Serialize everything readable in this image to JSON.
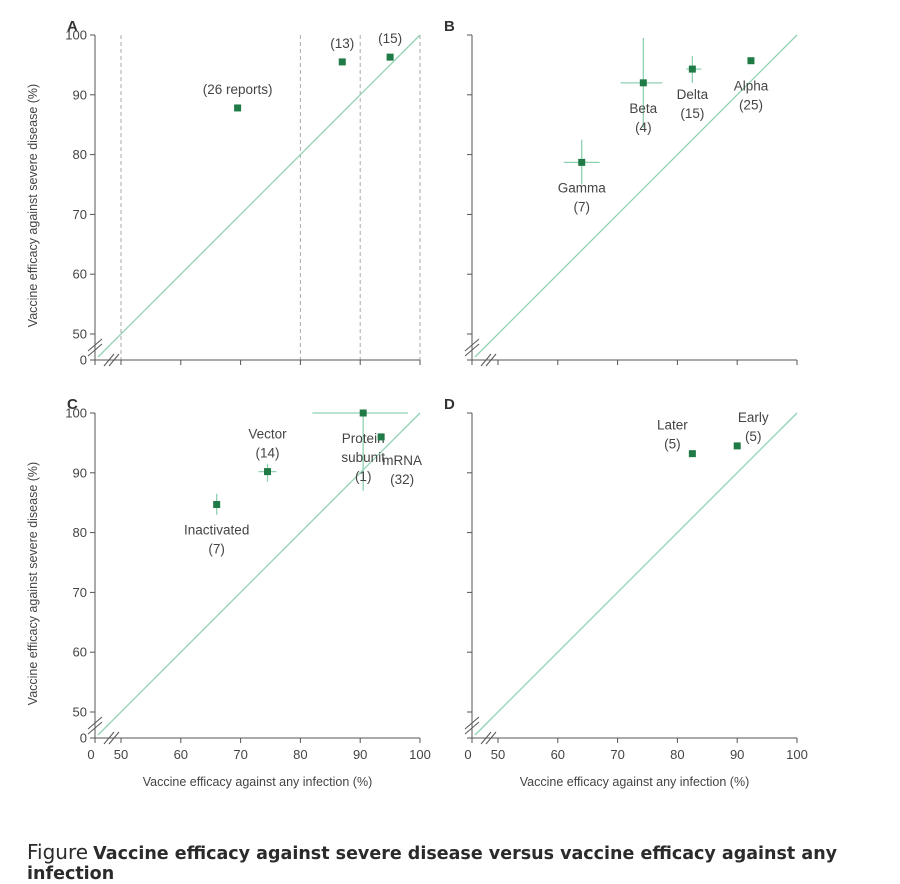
{
  "figure": {
    "caption_lead": "Figure",
    "caption_text": "Vaccine efficacy against severe disease versus vaccine efficacy against any infection"
  },
  "colors": {
    "marker": "#1f7a45",
    "diagonal": "#8fd2b2",
    "axis": "#555555",
    "dashed": "#aaaaaa",
    "errorbar": "#8fd2b2"
  },
  "chart_data": [
    {
      "panel": "A",
      "type": "scatter",
      "xlabel": "",
      "ylabel": "Vaccine efficacy against severe disease (%)",
      "xlim": [
        50,
        100
      ],
      "ylim": [
        50,
        100
      ],
      "axis_break": true,
      "x_ticks": [],
      "y_ticks": [
        "0",
        "50",
        "60",
        "70",
        "80",
        "90",
        "100"
      ],
      "dashed_vlines": [
        50,
        80,
        90,
        100
      ],
      "points": [
        {
          "x": 69.5,
          "y": 87.8,
          "label": "(26 reports)",
          "label_pos": "above"
        },
        {
          "x": 87,
          "y": 95.5,
          "label": "(13)",
          "label_pos": "above"
        },
        {
          "x": 95,
          "y": 96.3,
          "label": "(15)",
          "label_pos": "above"
        }
      ]
    },
    {
      "panel": "B",
      "type": "scatter",
      "xlabel": "",
      "ylabel": "",
      "xlim": [
        50,
        100
      ],
      "ylim": [
        50,
        100
      ],
      "axis_break": true,
      "x_ticks": [],
      "y_ticks": [],
      "dashed_vlines": [],
      "points": [
        {
          "x": 64,
          "y": 78.7,
          "xerr": [
            61,
            67
          ],
          "yerr": [
            75,
            82.5
          ],
          "label": "Gamma",
          "label2": "(7)",
          "label_pos": "below"
        },
        {
          "x": 74.3,
          "y": 92,
          "xerr": [
            70.5,
            77.5
          ],
          "yerr": [
            84.5,
            99.5
          ],
          "label": "Beta",
          "label2": "(4)",
          "label_pos": "below"
        },
        {
          "x": 82.5,
          "y": 94.3,
          "xerr": [
            81.5,
            84
          ],
          "yerr": [
            92,
            96.5
          ],
          "label": "Delta",
          "label2": "(15)",
          "label_pos": "below"
        },
        {
          "x": 92.3,
          "y": 95.7,
          "label": "Alpha",
          "label2": "(25)",
          "label_pos": "below"
        }
      ]
    },
    {
      "panel": "C",
      "type": "scatter",
      "xlabel": "Vaccine efficacy against any infection (%)",
      "ylabel": "Vaccine efficacy against severe disease (%)",
      "xlim": [
        50,
        100
      ],
      "ylim": [
        50,
        100
      ],
      "axis_break": true,
      "x_ticks": [
        "0",
        "50",
        "60",
        "70",
        "80",
        "90",
        "100"
      ],
      "y_ticks": [
        "0",
        "50",
        "60",
        "70",
        "80",
        "90",
        "100"
      ],
      "dashed_vlines": [],
      "points": [
        {
          "x": 66,
          "y": 84.7,
          "xerr": [
            65.5,
            66.5
          ],
          "yerr": [
            83,
            86.5
          ],
          "label": "Inactivated",
          "label2": "(7)",
          "label_pos": "below"
        },
        {
          "x": 74.5,
          "y": 90.2,
          "xerr": [
            73,
            76
          ],
          "yerr": [
            88.5,
            91.5
          ],
          "label": "Vector",
          "label2": "(14)",
          "label_pos": "above"
        },
        {
          "x": 90.5,
          "y": 100,
          "xerr": [
            82,
            98
          ],
          "yerr": [
            87,
            100
          ],
          "label": "Protein",
          "label2": "subunit",
          "label3": "(1)",
          "label_pos": "below"
        },
        {
          "x": 93.5,
          "y": 96,
          "label": "mRNA",
          "label2": "(32)",
          "label_pos": "below-right"
        }
      ]
    },
    {
      "panel": "D",
      "type": "scatter",
      "xlabel": "Vaccine efficacy against any infection (%)",
      "ylabel": "",
      "xlim": [
        50,
        100
      ],
      "ylim": [
        50,
        100
      ],
      "axis_break": true,
      "x_ticks": [
        "0",
        "50",
        "60",
        "70",
        "80",
        "90",
        "100"
      ],
      "y_ticks": [],
      "dashed_vlines": [],
      "points": [
        {
          "x": 82.5,
          "y": 93.2,
          "label": "Later",
          "label2": "(5)",
          "label_pos": "left"
        },
        {
          "x": 90,
          "y": 94.5,
          "label": "Early",
          "label2": "(5)",
          "label_pos": "right"
        }
      ]
    }
  ]
}
